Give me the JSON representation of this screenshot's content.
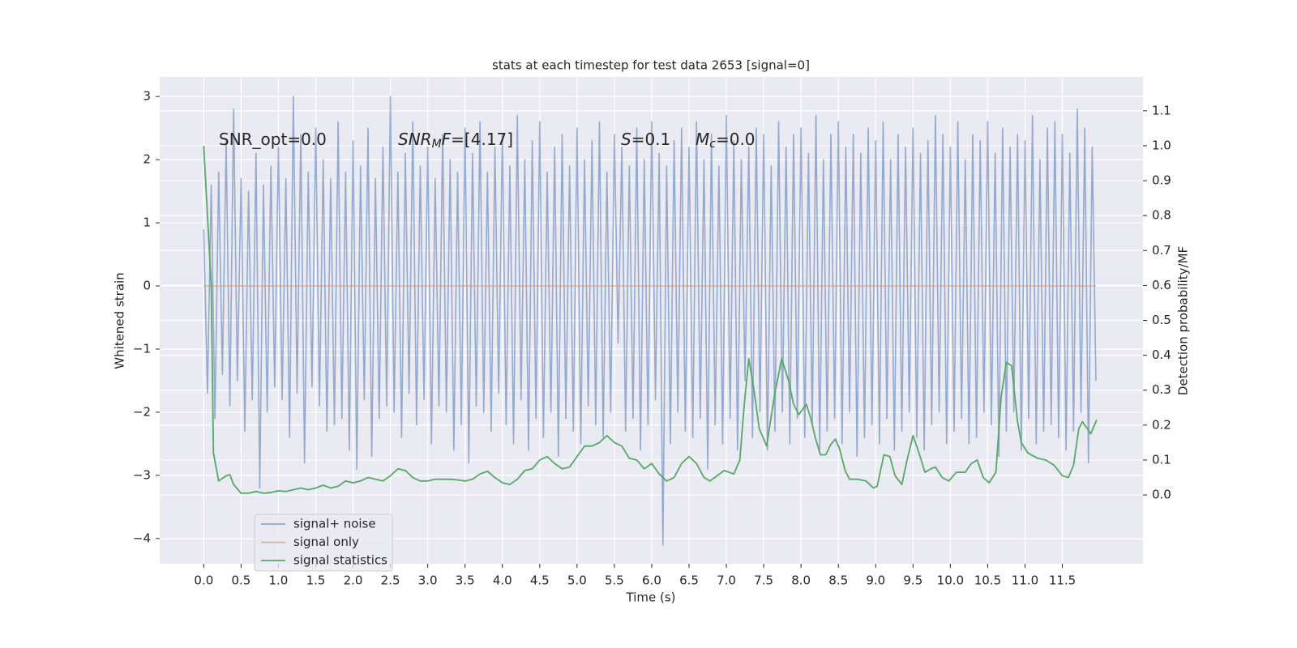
{
  "chart_data": {
    "type": "line",
    "title": "stats at each timestep for test data 2653 [signal=0]",
    "x_label": "Time (s)",
    "y_label": "Whitened strain",
    "y2_label": "Detection probability/MF",
    "xlim": [
      -0.59,
      12.58
    ],
    "ylim": [
      -4.4,
      3.31
    ],
    "y2lim": [
      -0.197,
      1.197
    ],
    "xticks": [
      {
        "value": 0,
        "label": "0.0"
      },
      0.5,
      {
        "value": 1,
        "label": "1.0"
      },
      1.5,
      {
        "value": 2,
        "label": "2.0"
      },
      2.5,
      {
        "value": 3,
        "label": "3.0"
      },
      3.5,
      {
        "value": 4,
        "label": "4.0"
      },
      4.5,
      {
        "value": 5,
        "label": "5.0"
      },
      5.5,
      {
        "value": 6,
        "label": "6.0"
      },
      6.5,
      {
        "value": 7,
        "label": "7.0"
      },
      7.5,
      {
        "value": 8,
        "label": "8.0"
      },
      8.5,
      {
        "value": 9,
        "label": "9.0"
      },
      9.5,
      {
        "value": 10,
        "label": "10.0"
      },
      10.5,
      {
        "value": 11,
        "label": "11.0"
      },
      11.5
    ],
    "yticks": [
      {
        "value": -4,
        "label": "−4"
      },
      {
        "value": -3,
        "label": "−3"
      },
      {
        "value": -2,
        "label": "−2"
      },
      {
        "value": -1,
        "label": "−1"
      },
      0,
      1,
      2,
      3
    ],
    "y2ticks": [
      {
        "value": 0,
        "label": "0.0"
      },
      0.1,
      0.2,
      0.3,
      0.4,
      0.5,
      0.6,
      0.7,
      0.8,
      0.9,
      {
        "value": 1,
        "label": "1.0"
      },
      1.1
    ],
    "grid": true,
    "legend": "lower left",
    "annotations": [
      {
        "parts": [
          {
            "text": "SNR_opt=0.0"
          }
        ]
      },
      {
        "parts": [
          {
            "text": "SNR",
            "italic": true
          },
          {
            "text": "M",
            "italic": true,
            "sub": true
          },
          {
            "text": "F",
            "italic": true
          },
          {
            "text": "=[4.17]"
          }
        ]
      },
      {
        "parts": [
          {
            "text": "S",
            "italic": true
          },
          {
            "text": "=0.1"
          }
        ]
      },
      {
        "parts": [
          {
            "text": "M",
            "italic": true
          },
          {
            "text": "c",
            "italic": true,
            "sub": true
          },
          {
            "text": "=0.0"
          }
        ]
      }
    ],
    "series": [
      {
        "name": "signal+ noise",
        "color": "#4c72b0",
        "alpha": 0.55,
        "x": [
          0,
          0.05,
          0.1,
          0.15,
          0.2,
          0.25,
          0.3,
          0.35,
          0.4,
          0.45,
          0.5,
          0.55,
          0.6,
          0.65,
          0.7,
          0.75,
          0.8,
          0.85,
          0.9,
          0.95,
          1,
          1.05,
          1.1,
          1.15,
          1.2,
          1.25,
          1.3,
          1.35,
          1.4,
          1.45,
          1.5,
          1.55,
          1.6,
          1.65,
          1.7,
          1.75,
          1.8,
          1.85,
          1.9,
          1.95,
          2,
          2.05,
          2.1,
          2.15,
          2.2,
          2.25,
          2.3,
          2.35,
          2.4,
          2.45,
          2.5,
          2.55,
          2.6,
          2.65,
          2.7,
          2.75,
          2.8,
          2.85,
          2.9,
          2.95,
          3,
          3.05,
          3.1,
          3.15,
          3.2,
          3.25,
          3.3,
          3.35,
          3.4,
          3.45,
          3.5,
          3.55,
          3.6,
          3.65,
          3.7,
          3.75,
          3.8,
          3.85,
          3.9,
          3.95,
          4,
          4.05,
          4.1,
          4.15,
          4.2,
          4.25,
          4.3,
          4.35,
          4.4,
          4.45,
          4.5,
          4.55,
          4.6,
          4.65,
          4.7,
          4.75,
          4.8,
          4.85,
          4.9,
          4.95,
          5,
          5.05,
          5.1,
          5.15,
          5.2,
          5.25,
          5.3,
          5.35,
          5.4,
          5.45,
          5.5,
          5.55,
          5.6,
          5.65,
          5.7,
          5.75,
          5.8,
          5.85,
          5.9,
          5.95,
          6,
          6.05,
          6.1,
          6.15,
          6.2,
          6.25,
          6.3,
          6.35,
          6.4,
          6.45,
          6.5,
          6.55,
          6.6,
          6.65,
          6.7,
          6.75,
          6.8,
          6.85,
          6.9,
          6.95,
          7,
          7.05,
          7.1,
          7.15,
          7.2,
          7.25,
          7.3,
          7.35,
          7.4,
          7.45,
          7.5,
          7.55,
          7.6,
          7.65,
          7.7,
          7.75,
          7.8,
          7.85,
          7.9,
          7.95,
          8,
          8.05,
          8.1,
          8.15,
          8.2,
          8.25,
          8.3,
          8.35,
          8.4,
          8.45,
          8.5,
          8.55,
          8.6,
          8.65,
          8.7,
          8.75,
          8.8,
          8.85,
          8.9,
          8.95,
          9,
          9.05,
          9.1,
          9.15,
          9.2,
          9.25,
          9.3,
          9.35,
          9.4,
          9.45,
          9.5,
          9.55,
          9.6,
          9.65,
          9.7,
          9.75,
          9.8,
          9.85,
          9.9,
          9.95,
          10,
          10.05,
          10.1,
          10.15,
          10.2,
          10.25,
          10.3,
          10.35,
          10.4,
          10.45,
          10.5,
          10.55,
          10.6,
          10.65,
          10.7,
          10.75,
          10.8,
          10.85,
          10.9,
          10.95,
          11,
          11.05,
          11.1,
          11.15,
          11.2,
          11.25,
          11.3,
          11.35,
          11.4,
          11.45,
          11.5,
          11.55,
          11.6,
          11.65,
          11.7,
          11.75,
          11.8,
          11.85,
          11.9,
          11.95
        ],
        "values": [
          0.9,
          -1.7,
          1.6,
          -2.1,
          1.8,
          -1.4,
          2.3,
          -1.9,
          2.8,
          -1.5,
          1.7,
          -2.3,
          1.5,
          -1.8,
          2.1,
          -3.2,
          1.6,
          -2.0,
          1.9,
          -1.6,
          2.2,
          -1.8,
          1.7,
          -2.4,
          3.0,
          -1.7,
          2.4,
          -2.8,
          1.8,
          -1.6,
          2.5,
          -1.9,
          2.0,
          -2.3,
          1.7,
          -2.2,
          2.6,
          -2.1,
          1.8,
          -2.6,
          2.3,
          -2.9,
          1.9,
          -1.8,
          2.5,
          -2.7,
          1.7,
          -2.1,
          2.2,
          -1.9,
          3.0,
          -2.0,
          1.8,
          -2.4,
          2.1,
          -1.7,
          2.6,
          -2.2,
          1.9,
          -1.8,
          2.2,
          -2.5,
          1.7,
          -1.9,
          2.4,
          -2.0,
          2.0,
          -2.6,
          1.8,
          -2.2,
          2.5,
          -2.8,
          2.1,
          -1.9,
          2.6,
          -2.0,
          1.8,
          -2.3,
          2.2,
          -1.7,
          2.4,
          -2.2,
          1.9,
          -2.5,
          2.7,
          -1.8,
          2.0,
          -2.6,
          2.3,
          -2.1,
          2.6,
          -2.4,
          1.8,
          -2.0,
          2.2,
          -2.7,
          2.4,
          -2.1,
          1.9,
          -2.3,
          2.5,
          -2.5,
          2.0,
          -1.9,
          2.3,
          -2.2,
          2.6,
          -2.4,
          1.8,
          -2.0,
          2.4,
          -0.9,
          2.2,
          -2.3,
          1.9,
          -2.1,
          2.5,
          -2.6,
          2.0,
          -2.2,
          2.6,
          -1.8,
          2.1,
          -4.1,
          1.9,
          -2.5,
          2.3,
          -2.0,
          2.5,
          -2.3,
          2.2,
          -2.4,
          2.6,
          -2.1,
          2.0,
          -2.9,
          2.4,
          -2.2,
          1.9,
          -2.5,
          2.7,
          -2.1,
          2.3,
          -2.6,
          2.0,
          -1.5,
          2.2,
          -2.4,
          2.5,
          -2.0,
          2.4,
          -2.6,
          1.9,
          -2.3,
          2.6,
          -2.0,
          2.2,
          -2.5,
          2.4,
          -2.1,
          2.5,
          -2.4,
          2.1,
          -2.2,
          2.7,
          -2.6,
          2.0,
          -2.3,
          2.4,
          -2.1,
          2.6,
          -2.5,
          2.2,
          -2.0,
          2.4,
          -2.7,
          2.1,
          -2.4,
          2.5,
          -2.2,
          2.3,
          -2.5,
          2.6,
          -2.1,
          2.0,
          -2.6,
          2.4,
          -2.3,
          2.2,
          -2.0,
          2.5,
          -2.4,
          2.1,
          -2.6,
          2.3,
          -2.2,
          2.7,
          -2.0,
          2.4,
          -2.5,
          2.2,
          -2.3,
          2.6,
          -2.1,
          2.0,
          -2.5,
          2.4,
          -2.4,
          2.3,
          -2.0,
          2.6,
          -2.2,
          2.1,
          -2.7,
          2.5,
          -2.3,
          2.2,
          -2.0,
          2.4,
          -2.6,
          2.3,
          -2.1,
          2.7,
          -2.5,
          2.0,
          -2.3,
          2.5,
          -2.2,
          2.6,
          -2.4,
          2.4,
          -2.6,
          2.1,
          -2.3,
          2.8,
          -2.0,
          2.5,
          -2.8,
          2.2,
          -1.5
        ]
      },
      {
        "name": "signal only",
        "color": "#dd8452",
        "alpha": 0.55,
        "x": [
          0,
          11.95
        ],
        "values": [
          0,
          0
        ]
      },
      {
        "name": "signal statistics",
        "color": "#55a868",
        "alpha": 1,
        "axis": "y2",
        "x": [
          0,
          0.1,
          0.13,
          0.2,
          0.3,
          0.35,
          0.4,
          0.5,
          0.6,
          0.7,
          0.8,
          0.9,
          1.0,
          1.1,
          1.2,
          1.3,
          1.4,
          1.5,
          1.6,
          1.7,
          1.8,
          1.9,
          2.0,
          2.1,
          2.2,
          2.3,
          2.4,
          2.5,
          2.6,
          2.7,
          2.8,
          2.9,
          3.0,
          3.1,
          3.2,
          3.3,
          3.4,
          3.5,
          3.6,
          3.7,
          3.8,
          3.9,
          4.0,
          4.1,
          4.2,
          4.3,
          4.4,
          4.5,
          4.6,
          4.7,
          4.8,
          4.9,
          5.0,
          5.1,
          5.2,
          5.3,
          5.4,
          5.5,
          5.6,
          5.7,
          5.8,
          5.9,
          6.0,
          6.1,
          6.2,
          6.3,
          6.4,
          6.5,
          6.6,
          6.7,
          6.78,
          6.97,
          7.1,
          7.18,
          7.24,
          7.3,
          7.37,
          7.44,
          7.54,
          7.64,
          7.74,
          7.83,
          7.9,
          7.97,
          8.07,
          8.13,
          8.19,
          8.26,
          8.33,
          8.4,
          8.46,
          8.52,
          8.59,
          8.65,
          8.76,
          8.87,
          8.97,
          9.02,
          9.11,
          9.19,
          9.26,
          9.35,
          9.42,
          9.5,
          9.58,
          9.66,
          9.74,
          9.8,
          9.89,
          9.98,
          10.08,
          10.2,
          10.28,
          10.36,
          10.44,
          10.52,
          10.61,
          10.68,
          10.75,
          10.82,
          10.9,
          10.95,
          11.04,
          11.17,
          11.28,
          11.39,
          11.5,
          11.58,
          11.65,
          11.72,
          11.77,
          11.88,
          11.96
        ],
        "values": [
          1.0,
          0.6,
          0.12,
          0.04,
          0.055,
          0.058,
          0.03,
          0.005,
          0.005,
          0.01,
          0.005,
          0.007,
          0.012,
          0.01,
          0.015,
          0.02,
          0.015,
          0.02,
          0.028,
          0.02,
          0.025,
          0.04,
          0.035,
          0.04,
          0.05,
          0.045,
          0.04,
          0.055,
          0.075,
          0.07,
          0.05,
          0.04,
          0.04,
          0.045,
          0.045,
          0.045,
          0.043,
          0.04,
          0.045,
          0.06,
          0.068,
          0.05,
          0.035,
          0.03,
          0.045,
          0.07,
          0.075,
          0.1,
          0.11,
          0.09,
          0.075,
          0.08,
          0.11,
          0.14,
          0.14,
          0.15,
          0.17,
          0.15,
          0.14,
          0.105,
          0.1,
          0.075,
          0.09,
          0.06,
          0.04,
          0.05,
          0.09,
          0.11,
          0.09,
          0.05,
          0.04,
          0.07,
          0.06,
          0.1,
          0.26,
          0.39,
          0.3,
          0.19,
          0.14,
          0.28,
          0.39,
          0.33,
          0.26,
          0.23,
          0.26,
          0.22,
          0.165,
          0.115,
          0.115,
          0.145,
          0.16,
          0.13,
          0.07,
          0.045,
          0.045,
          0.04,
          0.02,
          0.025,
          0.115,
          0.11,
          0.055,
          0.03,
          0.1,
          0.17,
          0.12,
          0.065,
          0.075,
          0.08,
          0.05,
          0.04,
          0.065,
          0.065,
          0.09,
          0.1,
          0.05,
          0.035,
          0.065,
          0.28,
          0.38,
          0.37,
          0.21,
          0.15,
          0.12,
          0.105,
          0.1,
          0.085,
          0.055,
          0.05,
          0.085,
          0.19,
          0.21,
          0.175,
          0.215
        ]
      }
    ]
  }
}
